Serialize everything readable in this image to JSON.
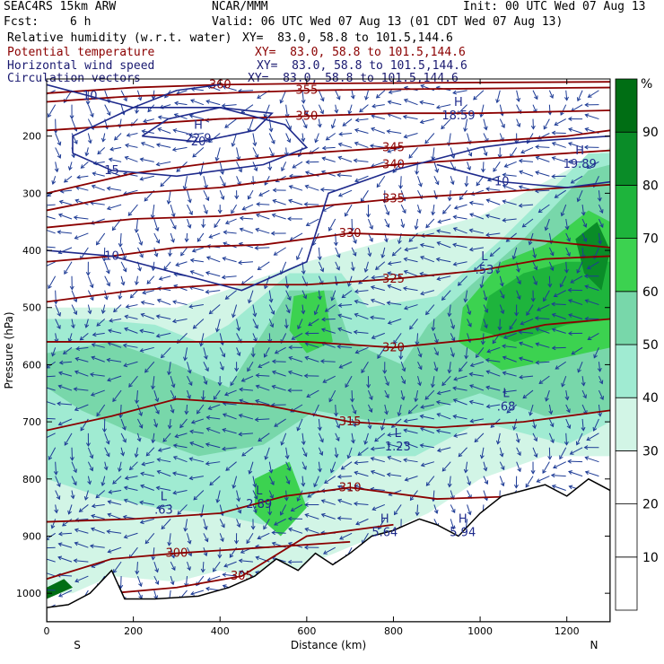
{
  "header": {
    "model": "SEAC4RS 15km ARW",
    "org": "NCAR/MMM",
    "init": "Init: 00 UTC Wed 07 Aug 13",
    "fcst_label": "Fcst:",
    "fcst_value": "6 h",
    "valid": "Valid: 06 UTC Wed 07 Aug 13 (01 CDT Wed 07 Aug 13)"
  },
  "fields": [
    {
      "name": "Relative humidity (w.r.t. water)",
      "xy": "XY=  83.0, 58.8 to 101.5,144.6",
      "color": "#000000"
    },
    {
      "name": "Potential temperature",
      "xy": "XY=  83.0, 58.8 to 101.5,144.6",
      "color": "#8b0000"
    },
    {
      "name": "Horizontal wind speed",
      "xy": "XY=  83.0, 58.8 to 101.5,144.6",
      "color": "#191970"
    },
    {
      "name": "Circulation vectors",
      "xy": "XY=  83.0, 58.8 to 101.5,144.6",
      "color": "#191970"
    }
  ],
  "chart_data": {
    "type": "heatmap",
    "xlabel": "Distance (km)",
    "ylabel": "Pressure (hPa)",
    "x_ticks": [
      0,
      200,
      400,
      600,
      800,
      1000,
      1200
    ],
    "y_ticks": [
      200,
      300,
      400,
      500,
      600,
      700,
      800,
      900,
      1000
    ],
    "xlim": [
      0,
      1300
    ],
    "ylim": [
      1050,
      100
    ],
    "x_end_labels": {
      "left": "S",
      "right": "N"
    },
    "colorbar": {
      "unit": "%",
      "levels": [
        10,
        20,
        30,
        40,
        50,
        60,
        70,
        80,
        90
      ],
      "colors": [
        "#ffffff",
        "#ffffff",
        "#ffffff",
        "#d2f5e6",
        "#a0ebd2",
        "#78d7aa",
        "#3cd250",
        "#1eb43c",
        "#0a8c28",
        "#006e14"
      ]
    },
    "theta_contours": [
      {
        "label": "300",
        "points": [
          [
            0,
            975
          ],
          [
            150,
            940
          ],
          [
            300,
            930
          ],
          [
            500,
            920
          ],
          [
            700,
            910
          ]
        ]
      },
      {
        "label": "305",
        "points": [
          [
            150,
            1000
          ],
          [
            300,
            990
          ],
          [
            450,
            970
          ],
          [
            600,
            900
          ],
          [
            800,
            880
          ]
        ]
      },
      {
        "label": "310",
        "points": [
          [
            0,
            875
          ],
          [
            200,
            870
          ],
          [
            400,
            860
          ],
          [
            550,
            830
          ],
          [
            700,
            815
          ],
          [
            900,
            835
          ],
          [
            1100,
            830
          ],
          [
            1300,
            830
          ]
        ]
      },
      {
        "label": "315",
        "points": [
          [
            0,
            715
          ],
          [
            150,
            690
          ],
          [
            300,
            660
          ],
          [
            500,
            670
          ],
          [
            700,
            700
          ],
          [
            900,
            710
          ],
          [
            1100,
            700
          ],
          [
            1300,
            680
          ]
        ]
      },
      {
        "label": "320",
        "points": [
          [
            0,
            560
          ],
          [
            200,
            560
          ],
          [
            400,
            560
          ],
          [
            600,
            560
          ],
          [
            800,
            570
          ],
          [
            1000,
            555
          ],
          [
            1150,
            530
          ],
          [
            1300,
            520
          ]
        ]
      },
      {
        "label": "325",
        "points": [
          [
            0,
            490
          ],
          [
            200,
            470
          ],
          [
            400,
            460
          ],
          [
            600,
            460
          ],
          [
            800,
            450
          ],
          [
            1000,
            435
          ],
          [
            1150,
            415
          ],
          [
            1300,
            410
          ]
        ]
      },
      {
        "label": "330",
        "points": [
          [
            0,
            420
          ],
          [
            150,
            410
          ],
          [
            300,
            395
          ],
          [
            500,
            390
          ],
          [
            700,
            370
          ],
          [
            900,
            375
          ],
          [
            1100,
            380
          ],
          [
            1300,
            395
          ]
        ]
      },
      {
        "label": "335",
        "points": [
          [
            0,
            360
          ],
          [
            200,
            345
          ],
          [
            400,
            340
          ],
          [
            600,
            325
          ],
          [
            800,
            310
          ],
          [
            1000,
            300
          ],
          [
            1200,
            290
          ],
          [
            1300,
            285
          ]
        ]
      },
      {
        "label": "340",
        "points": [
          [
            0,
            330
          ],
          [
            200,
            300
          ],
          [
            400,
            290
          ],
          [
            600,
            270
          ],
          [
            800,
            250
          ],
          [
            1000,
            240
          ],
          [
            1200,
            230
          ],
          [
            1300,
            225
          ]
        ]
      },
      {
        "label": "345",
        "points": [
          [
            0,
            300
          ],
          [
            200,
            265
          ],
          [
            400,
            245
          ],
          [
            600,
            230
          ],
          [
            800,
            220
          ],
          [
            1000,
            210
          ],
          [
            1200,
            200
          ],
          [
            1300,
            190
          ]
        ]
      },
      {
        "label": "350",
        "points": [
          [
            0,
            190
          ],
          [
            200,
            180
          ],
          [
            400,
            170
          ],
          [
            600,
            165
          ],
          [
            800,
            160
          ],
          [
            1000,
            160
          ],
          [
            1300,
            155
          ]
        ]
      },
      {
        "label": "355",
        "points": [
          [
            0,
            140
          ],
          [
            200,
            130
          ],
          [
            400,
            125
          ],
          [
            600,
            120
          ],
          [
            800,
            118
          ],
          [
            1300,
            115
          ]
        ]
      },
      {
        "label": "360",
        "points": [
          [
            0,
            125
          ],
          [
            200,
            115
          ],
          [
            400,
            110
          ],
          [
            600,
            108
          ],
          [
            1300,
            105
          ]
        ]
      }
    ],
    "wind_contours": [
      {
        "label": "10",
        "points": [
          [
            0,
            110
          ],
          [
            100,
            130
          ],
          [
            200,
            150
          ],
          [
            300,
            120
          ],
          [
            400,
            110
          ]
        ]
      },
      {
        "label": "15",
        "points": [
          [
            60,
            230
          ],
          [
            150,
            260
          ],
          [
            300,
            270
          ],
          [
            500,
            250
          ],
          [
            600,
            220
          ],
          [
            550,
            180
          ],
          [
            400,
            150
          ],
          [
            200,
            150
          ],
          [
            60,
            200
          ],
          [
            60,
            230
          ]
        ]
      },
      {
        "label": "20",
        "points": [
          [
            220,
            200
          ],
          [
            350,
            210
          ],
          [
            480,
            190
          ],
          [
            520,
            160
          ],
          [
            400,
            150
          ],
          [
            280,
            170
          ],
          [
            220,
            200
          ]
        ]
      },
      {
        "label": "10",
        "points": [
          [
            0,
            400
          ],
          [
            150,
            410
          ],
          [
            300,
            440
          ],
          [
            450,
            470
          ],
          [
            600,
            420
          ],
          [
            650,
            300
          ],
          [
            800,
            260
          ],
          [
            1000,
            220
          ],
          [
            1100,
            210
          ],
          [
            1300,
            200
          ]
        ]
      },
      {
        "label": "10",
        "points": [
          [
            900,
            250
          ],
          [
            1050,
            280
          ],
          [
            1200,
            290
          ],
          [
            1300,
            280
          ]
        ]
      }
    ],
    "extrema": [
      {
        "type": "H",
        "value": "22.9",
        "x": 350,
        "p": 190
      },
      {
        "type": "H",
        "value": "18.59",
        "x": 950,
        "p": 150
      },
      {
        "type": "H",
        "value": "19.89",
        "x": 1230,
        "p": 235
      },
      {
        "type": "L",
        "value": ".53",
        "x": 1010,
        "p": 420
      },
      {
        "type": "L",
        "value": ".68",
        "x": 1060,
        "p": 660
      },
      {
        "type": "L",
        "value": "1.23",
        "x": 810,
        "p": 730
      },
      {
        "type": "L",
        "value": "2.89",
        "x": 490,
        "p": 830
      },
      {
        "type": "L",
        "value": ".63",
        "x": 270,
        "p": 840
      },
      {
        "type": "H",
        "value": "5.64",
        "x": 780,
        "p": 880
      },
      {
        "type": "H",
        "value": "5.94",
        "x": 960,
        "p": 880
      }
    ],
    "rh_regions": [
      {
        "level": 90,
        "points": [
          [
            0,
            990
          ],
          [
            40,
            975
          ],
          [
            60,
            990
          ],
          [
            0,
            1010
          ]
        ]
      },
      {
        "level": 80,
        "points": [
          [
            1220,
            380
          ],
          [
            1270,
            350
          ],
          [
            1300,
            400
          ],
          [
            1280,
            470
          ],
          [
            1240,
            440
          ]
        ]
      },
      {
        "level": 70,
        "points": [
          [
            1020,
            480
          ],
          [
            1100,
            440
          ],
          [
            1200,
            420
          ],
          [
            1300,
            420
          ],
          [
            1300,
            520
          ],
          [
            1200,
            530
          ],
          [
            1080,
            560
          ],
          [
            1000,
            540
          ]
        ]
      },
      {
        "level": 60,
        "points": [
          [
            960,
            500
          ],
          [
            1050,
            420
          ],
          [
            1150,
            390
          ],
          [
            1250,
            330
          ],
          [
            1300,
            350
          ],
          [
            1300,
            570
          ],
          [
            1180,
            590
          ],
          [
            1050,
            610
          ],
          [
            950,
            560
          ]
        ]
      },
      {
        "level": 60,
        "points": [
          [
            570,
            480
          ],
          [
            640,
            470
          ],
          [
            660,
            560
          ],
          [
            600,
            580
          ],
          [
            560,
            540
          ]
        ]
      },
      {
        "level": 60,
        "points": [
          [
            480,
            800
          ],
          [
            560,
            770
          ],
          [
            600,
            850
          ],
          [
            540,
            900
          ],
          [
            480,
            860
          ]
        ]
      },
      {
        "level": 50,
        "points": [
          [
            0,
            580
          ],
          [
            150,
            560
          ],
          [
            300,
            600
          ],
          [
            420,
            640
          ],
          [
            560,
            470
          ],
          [
            660,
            470
          ],
          [
            700,
            560
          ],
          [
            820,
            600
          ],
          [
            880,
            530
          ],
          [
            980,
            460
          ],
          [
            1100,
            380
          ],
          [
            1250,
            260
          ],
          [
            1300,
            250
          ],
          [
            1300,
            680
          ],
          [
            1150,
            690
          ],
          [
            1000,
            650
          ],
          [
            880,
            680
          ],
          [
            760,
            700
          ],
          [
            620,
            680
          ],
          [
            500,
            740
          ],
          [
            350,
            760
          ],
          [
            200,
            720
          ],
          [
            80,
            680
          ],
          [
            0,
            640
          ]
        ]
      },
      {
        "level": 40,
        "points": [
          [
            0,
            520
          ],
          [
            100,
            520
          ],
          [
            250,
            530
          ],
          [
            350,
            560
          ],
          [
            420,
            530
          ],
          [
            560,
            440
          ],
          [
            680,
            440
          ],
          [
            740,
            500
          ],
          [
            900,
            480
          ],
          [
            1050,
            380
          ],
          [
            1250,
            230
          ],
          [
            1300,
            230
          ],
          [
            1300,
            700
          ],
          [
            1200,
            740
          ],
          [
            1000,
            700
          ],
          [
            850,
            760
          ],
          [
            700,
            760
          ],
          [
            600,
            840
          ],
          [
            500,
            880
          ],
          [
            380,
            860
          ],
          [
            250,
            850
          ],
          [
            120,
            830
          ],
          [
            0,
            800
          ]
        ]
      },
      {
        "level": 30,
        "points": [
          [
            0,
            1000
          ],
          [
            0,
            500
          ],
          [
            300,
            500
          ],
          [
            600,
            420
          ],
          [
            1000,
            340
          ],
          [
            1300,
            220
          ],
          [
            1300,
            760
          ],
          [
            1150,
            760
          ],
          [
            1000,
            800
          ],
          [
            880,
            860
          ],
          [
            760,
            900
          ],
          [
            600,
            950
          ],
          [
            500,
            980
          ],
          [
            400,
            960
          ],
          [
            300,
            980
          ],
          [
            150,
            970
          ],
          [
            60,
            1000
          ]
        ]
      }
    ]
  }
}
